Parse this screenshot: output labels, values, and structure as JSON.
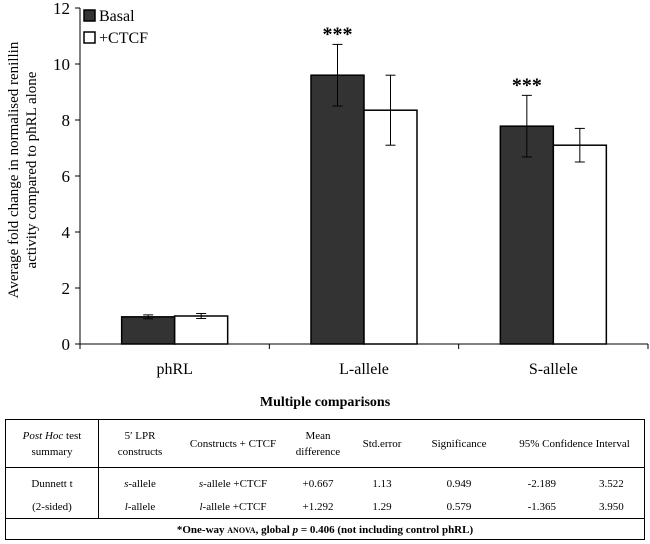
{
  "chart_data": {
    "type": "bar",
    "categories": [
      "phRL",
      "L-allele",
      "S-allele"
    ],
    "ylabel_line1": "Average fold change in normalised renillin",
    "ylabel_line2": "activity compared to phRL alone",
    "ylim": [
      0,
      12
    ],
    "yticks": [
      0,
      2,
      4,
      6,
      8,
      10,
      12
    ],
    "legend_position": "top-left",
    "series": [
      {
        "name": "Basal",
        "color": "#333333",
        "values": [
          0.97,
          9.6,
          7.78
        ],
        "errors": [
          0.07,
          1.1,
          1.1
        ]
      },
      {
        "name": "+CTCF",
        "color": "#ffffff",
        "values": [
          1.0,
          8.35,
          7.1
        ],
        "errors": [
          0.09,
          1.25,
          0.6
        ]
      }
    ],
    "annotations": [
      {
        "category": "L-allele",
        "text": "***"
      },
      {
        "category": "S-allele",
        "text": "***"
      }
    ]
  },
  "table": {
    "title": "Multiple comparisons",
    "headers": {
      "summary_italic": "Post Hoc",
      "summary_rest": " test",
      "summary_line2": "summary",
      "constructs_line1": "5′ LPR",
      "constructs_line2": "constructs",
      "ctcf": "Constructs + CTCF",
      "mean_line1": "Mean",
      "mean_line2": "difference",
      "stderr": "Std.error",
      "significance": "Significance",
      "ci": "95% Confidence Interval"
    },
    "test_line1": "Dunnett t",
    "test_line2": "(2-sided)",
    "rows": [
      {
        "construct_italic": "s",
        "construct_rest": "-allele",
        "ctcf_italic": "s",
        "ctcf_rest": "-allele +CTCF",
        "mean": "+0.667",
        "stderr": "1.13",
        "significance": "0.949",
        "ci_low": "-2.189",
        "ci_high": "3.522"
      },
      {
        "construct_italic": "l",
        "construct_rest": "-allele",
        "ctcf_italic": "l",
        "ctcf_rest": "-allele +CTCF",
        "mean": "+1.292",
        "stderr": "1.29",
        "significance": "0.579",
        "ci_low": "-1.365",
        "ci_high": "3.950"
      }
    ],
    "footnote_pre": "*One-way ",
    "footnote_sc": "anova",
    "footnote_mid": ", global ",
    "footnote_p": "p",
    "footnote_post": " = 0.406 (not including control phRL)"
  }
}
